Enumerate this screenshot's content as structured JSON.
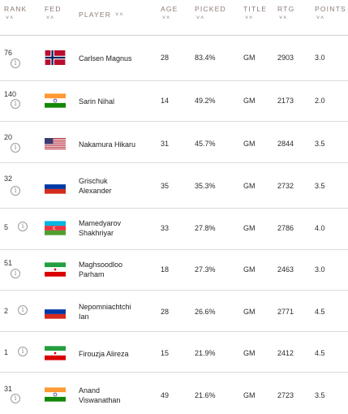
{
  "header": {
    "rank": "RANK",
    "fed": "FED",
    "player": "PLAYER",
    "age": "AGE",
    "picked": "PICKED",
    "title": "TITLE",
    "rtg": "RTG",
    "points": "POINTS",
    "sort_glyph": "˅˄"
  },
  "info_glyph": "i",
  "rows": [
    {
      "rank": "76",
      "flag": "norway-flag",
      "player_line1": "Carlsen Magnus",
      "player_line2": "",
      "age": "28",
      "picked": "83.4%",
      "title": "GM",
      "rtg": "2903",
      "points": "3.0"
    },
    {
      "rank": "140",
      "flag": "india-flag",
      "player_line1": "Sarin Nihal",
      "player_line2": "",
      "age": "14",
      "picked": "49.2%",
      "title": "GM",
      "rtg": "2173",
      "points": "2.0"
    },
    {
      "rank": "20",
      "flag": "usa-flag",
      "player_line1": "Nakamura Hikaru",
      "player_line2": "",
      "age": "31",
      "picked": "45.7%",
      "title": "GM",
      "rtg": "2844",
      "points": "3.5"
    },
    {
      "rank": "32",
      "flag": "russia-flag",
      "player_line1": "Grischuk",
      "player_line2": "Alexander",
      "age": "35",
      "picked": "35.3%",
      "title": "GM",
      "rtg": "2732",
      "points": "3.5"
    },
    {
      "rank": "5",
      "flag": "azerbaijan-flag",
      "player_line1": "Mamedyarov",
      "player_line2": "Shakhriyar",
      "age": "33",
      "picked": "27.8%",
      "title": "GM",
      "rtg": "2786",
      "points": "4.0"
    },
    {
      "rank": "51",
      "flag": "iran-flag",
      "player_line1": "Maghsoodloo",
      "player_line2": "Parham",
      "age": "18",
      "picked": "27.3%",
      "title": "GM",
      "rtg": "2463",
      "points": "3.0"
    },
    {
      "rank": "2",
      "flag": "russia-flag",
      "player_line1": "Nepomniachtchi",
      "player_line2": "Ian",
      "age": "28",
      "picked": "26.6%",
      "title": "GM",
      "rtg": "2771",
      "points": "4.5"
    },
    {
      "rank": "1",
      "flag": "iran-flag",
      "player_line1": "Firouzja Alireza",
      "player_line2": "",
      "age": "15",
      "picked": "21.9%",
      "title": "GM",
      "rtg": "2412",
      "points": "4.5"
    },
    {
      "rank": "31",
      "flag": "india-flag",
      "player_line1": "Anand",
      "player_line2": "Viswanathan",
      "age": "49",
      "picked": "21.6%",
      "title": "GM",
      "rtg": "2723",
      "points": "3.5"
    }
  ]
}
